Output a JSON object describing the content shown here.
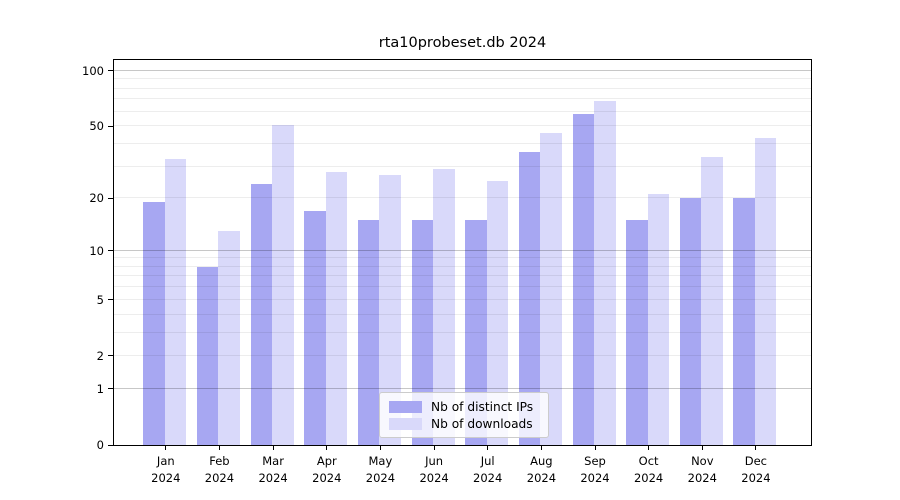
{
  "chart_data": {
    "type": "bar",
    "title": "rta10probeset.db 2024",
    "months": [
      "Jan",
      "Feb",
      "Mar",
      "Apr",
      "May",
      "Jun",
      "Jul",
      "Aug",
      "Sep",
      "Oct",
      "Nov",
      "Dec"
    ],
    "year": "2024",
    "categories": [
      "Jan 2024",
      "Feb 2024",
      "Mar 2024",
      "Apr 2024",
      "May 2024",
      "Jun 2024",
      "Jul 2024",
      "Aug 2024",
      "Sep 2024",
      "Oct 2024",
      "Nov 2024",
      "Dec 2024"
    ],
    "series": [
      {
        "name": "Nb of distinct IPs",
        "color": "#a7a7f2",
        "values": [
          19,
          8,
          24,
          17,
          15,
          15,
          15,
          36,
          58,
          15,
          20,
          20
        ]
      },
      {
        "name": "Nb of downloads",
        "color": "#d9d9fa",
        "values": [
          33,
          13,
          51,
          28,
          27,
          29,
          25,
          46,
          69,
          21,
          34,
          43
        ]
      }
    ],
    "y_ticks": [
      100,
      50,
      20,
      10,
      5,
      2,
      1,
      0
    ],
    "y_scale": "log10(1+value)",
    "ylim": [
      0,
      114
    ],
    "grid": true,
    "legend_position": "bottom-center-inside"
  },
  "colors": {
    "background": "#ffffff",
    "frame": "#000000",
    "major_grid": "rgba(0,0,0,0.22)",
    "minor_grid": "rgba(0,0,0,0.07)",
    "text": "#000000",
    "legend_border": "#cccccc",
    "legend_background": "rgba(255,255,255,0.8)"
  }
}
